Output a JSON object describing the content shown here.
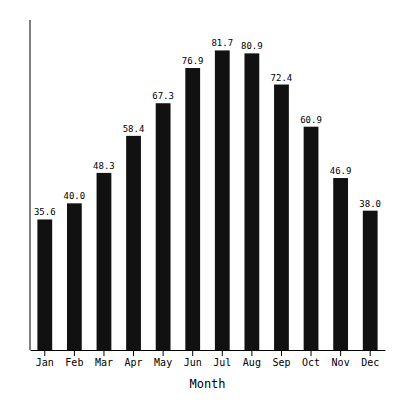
{
  "chart_data": {
    "type": "bar",
    "categories": [
      "Jan",
      "Feb",
      "Mar",
      "Apr",
      "May",
      "Jun",
      "Jul",
      "Aug",
      "Sep",
      "Oct",
      "Nov",
      "Dec"
    ],
    "values": [
      35.6,
      40.0,
      48.3,
      58.4,
      67.3,
      76.9,
      81.7,
      80.9,
      72.4,
      60.9,
      46.9,
      38.0
    ],
    "value_labels": [
      "35.6",
      "40.0",
      "48.3",
      "58.4",
      "67.3",
      "76.9",
      "81.7",
      "80.9",
      "72.4",
      "60.9",
      "46.9",
      "38.0"
    ],
    "color": "#111111",
    "xlabel": "Month",
    "ylim": [
      0,
      90
    ],
    "grid": false,
    "data_labels": true,
    "tick_labels": "x"
  }
}
